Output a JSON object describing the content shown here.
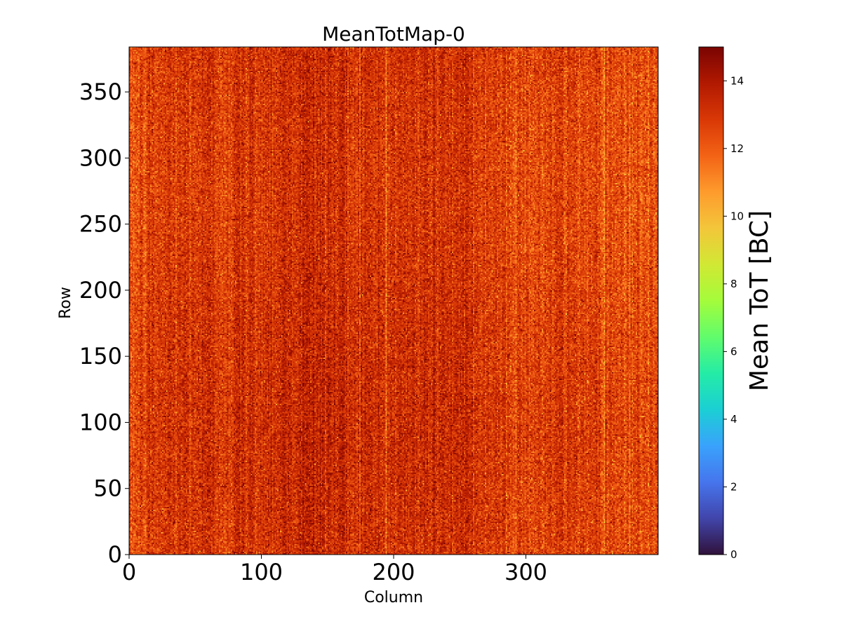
{
  "chart_data": {
    "type": "heatmap",
    "title": "MeanTotMap-0",
    "xlabel": "Column",
    "ylabel": "Row",
    "xlim": [
      0,
      400
    ],
    "ylim": [
      0,
      384
    ],
    "n_columns": 400,
    "n_rows": 384,
    "x_ticks": [
      0,
      100,
      200,
      300
    ],
    "x_tick_labels": [
      "0",
      "100",
      "200",
      "300"
    ],
    "y_ticks": [
      0,
      50,
      100,
      150,
      200,
      250,
      300,
      350
    ],
    "y_tick_labels": [
      "0",
      "50",
      "100",
      "150",
      "200",
      "250",
      "300",
      "350"
    ],
    "value_distribution": {
      "typical_min": 10.5,
      "typical_max": 14.5,
      "typical_mean": 12.8
    },
    "colorbar": {
      "label": "Mean ToT [BC]",
      "range": [
        0,
        15
      ],
      "ticks": [
        0,
        2,
        4,
        6,
        8,
        10,
        12,
        14
      ],
      "tick_labels": [
        "0",
        "2",
        "4",
        "6",
        "8",
        "10",
        "12",
        "14"
      ],
      "colormap": "turbo",
      "colormap_stops": [
        "#30123b",
        "#4145ab",
        "#4675ed",
        "#39a2fc",
        "#1bcfd4",
        "#24eca6",
        "#61fc6c",
        "#a4fc3b",
        "#d1e834",
        "#f3c63a",
        "#fe9b2d",
        "#f36315",
        "#d93806",
        "#b11901",
        "#7a0402"
      ]
    }
  }
}
